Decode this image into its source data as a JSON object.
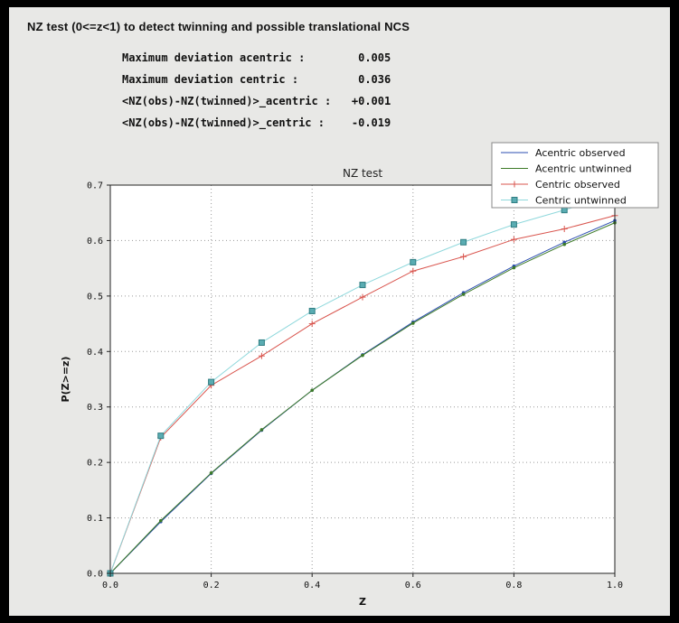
{
  "window": {
    "background": "#000000",
    "panel_background": "#e8e8e6"
  },
  "title": "NZ test (0<=z<1) to detect twinning and possible translational NCS",
  "stats": {
    "rows": [
      {
        "label": "Maximum deviation acentric :",
        "value": "0.005"
      },
      {
        "label": "Maximum deviation centric :",
        "value": "0.036"
      },
      {
        "label": "<NZ(obs)-NZ(twinned)>_acentric :",
        "value": "+0.001"
      },
      {
        "label": "<NZ(obs)-NZ(twinned)>_centric :",
        "value": "-0.019"
      }
    ]
  },
  "chart_data": {
    "type": "line",
    "title": "NZ test",
    "xlabel": "Z",
    "ylabel": "P(Z>=z)",
    "xlim": [
      0.0,
      1.0
    ],
    "ylim": [
      0.0,
      0.7
    ],
    "xticks": [
      0.0,
      0.2,
      0.4,
      0.6,
      0.8,
      1.0
    ],
    "xtick_labels": [
      "0.0",
      "0.2",
      "0.4",
      "0.6",
      "0.8",
      "1.0"
    ],
    "yticks": [
      0.0,
      0.1,
      0.2,
      0.3,
      0.4,
      0.5,
      0.6,
      0.7
    ],
    "ytick_labels": [
      "0.0",
      "0.1",
      "0.2",
      "0.3",
      "0.4",
      "0.5",
      "0.6",
      "0.7"
    ],
    "grid": true,
    "legend_position": "top-right",
    "x": [
      0.0,
      0.1,
      0.2,
      0.3,
      0.4,
      0.5,
      0.6,
      0.7,
      0.8,
      0.9,
      1.0
    ],
    "series": [
      {
        "name": "Acentric observed",
        "color": "#2b4db0",
        "marker": "dot",
        "values": [
          0.0,
          0.093,
          0.18,
          0.258,
          0.33,
          0.394,
          0.453,
          0.506,
          0.554,
          0.597,
          0.636
        ]
      },
      {
        "name": "Acentric untwinned",
        "color": "#3c7a28",
        "marker": "dot",
        "values": [
          0.0,
          0.095,
          0.181,
          0.259,
          0.33,
          0.393,
          0.451,
          0.503,
          0.551,
          0.593,
          0.632
        ]
      },
      {
        "name": "Centric observed",
        "color": "#d9544d",
        "marker": "plus",
        "values": [
          0.0,
          0.245,
          0.339,
          0.392,
          0.45,
          0.498,
          0.545,
          0.571,
          0.602,
          0.621,
          0.645
        ]
      },
      {
        "name": "Centric untwinned",
        "color": "#8fd8dc",
        "marker": "square",
        "marker_color": "#5aacb2",
        "marker_edge": "#2f7d82",
        "values": [
          0.0,
          0.248,
          0.345,
          0.416,
          0.473,
          0.52,
          0.561,
          0.597,
          0.629,
          0.655,
          0.683
        ]
      }
    ]
  }
}
